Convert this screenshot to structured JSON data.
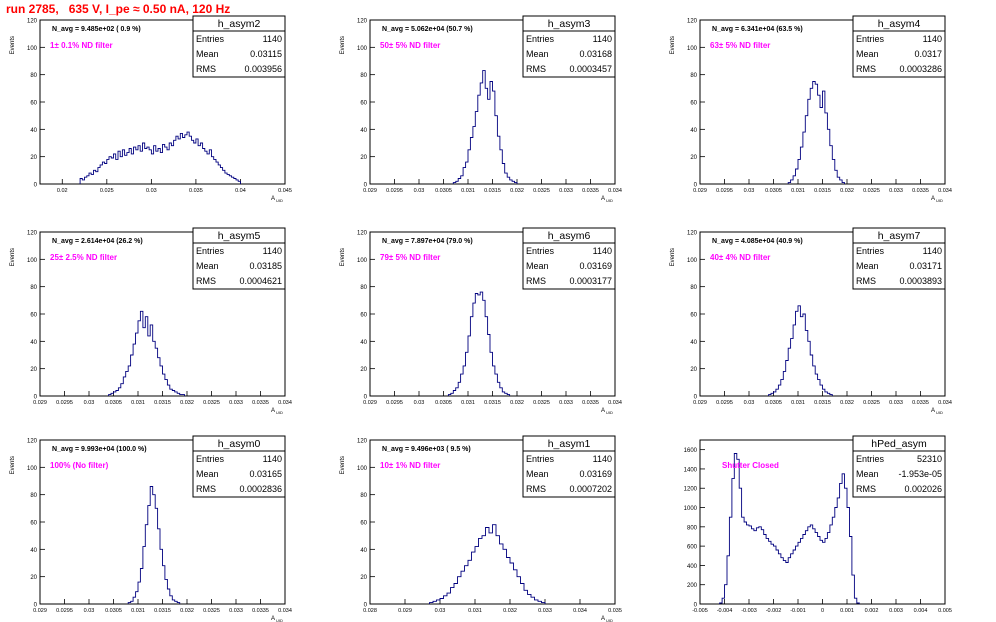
{
  "run_title": "run 2785,   635 V, I_pe ≈ 0.50 nA, 120 Hz",
  "chart_data": [
    {
      "type": "bar",
      "name": "h_asym2",
      "ylabel": "Events",
      "xlabel": "A_UID",
      "navg": "N_avg = 9.485e+02 ( 0.9 %)",
      "filter": "1± 0.1% ND filter",
      "stats": {
        "entries": "1140",
        "mean": "0.03115",
        "rms": "0.003956"
      },
      "xlim": [
        0.0175,
        0.045
      ],
      "ylim": [
        0,
        120
      ],
      "xticks": [
        0.02,
        0.025,
        0.03,
        0.035,
        0.04,
        0.045
      ],
      "xtick_labels": [
        "0.02",
        "0.025",
        "0.03",
        "0.035",
        "0.04",
        "0.045"
      ],
      "yticks": [
        0,
        20,
        40,
        60,
        80,
        100,
        120
      ],
      "bin_start": 0.022,
      "bin_width": 0.00025,
      "values": [
        4,
        3,
        5,
        6,
        8,
        7,
        10,
        9,
        12,
        14,
        16,
        15,
        18,
        20,
        19,
        22,
        18,
        24,
        20,
        25,
        21,
        23,
        26,
        22,
        27,
        25,
        28,
        24,
        30,
        26,
        27,
        25,
        22,
        28,
        24,
        26,
        23,
        29,
        27,
        25,
        30,
        28,
        32,
        35,
        33,
        37,
        34,
        36,
        38,
        35,
        32,
        30,
        33,
        28,
        30,
        26,
        24,
        22,
        25,
        20,
        18,
        16,
        14,
        12,
        10,
        8,
        7,
        6,
        5,
        4,
        3,
        2
      ]
    },
    {
      "type": "bar",
      "name": "h_asym3",
      "ylabel": "Events",
      "xlabel": "A_UID",
      "navg": "N_avg = 5.062e+04 (50.7 %)",
      "filter": "50± 5% ND filter",
      "stats": {
        "entries": "1140",
        "mean": "0.03168",
        "rms": "0.0003457"
      },
      "xlim": [
        0.029,
        0.034
      ],
      "ylim": [
        0,
        120
      ],
      "xticks": [
        0.029,
        0.0295,
        0.03,
        0.0305,
        0.031,
        0.0315,
        0.032,
        0.0325,
        0.033,
        0.0335,
        0.034
      ],
      "xtick_labels": [
        "0.029",
        "0.0295",
        "0.03",
        "0.0305",
        "0.031",
        "0.0315",
        "0.032",
        "0.0325",
        "0.033",
        "0.0335",
        "0.034"
      ],
      "yticks": [
        0,
        20,
        40,
        60,
        80,
        100,
        120
      ],
      "bin_start": 0.0307,
      "bin_width": 5e-05,
      "values": [
        1,
        2,
        4,
        6,
        12,
        16,
        25,
        34,
        42,
        53,
        65,
        74,
        83,
        70,
        62,
        75,
        68,
        50,
        35,
        25,
        15,
        8,
        5,
        3,
        2,
        1
      ]
    },
    {
      "type": "bar",
      "name": "h_asym4",
      "ylabel": "Events",
      "xlabel": "A_UID",
      "navg": "N_avg = 6.341e+04 (63.5 %)",
      "filter": "63± 5% ND filter",
      "stats": {
        "entries": "1140",
        "mean": "0.0317",
        "rms": "0.0003286"
      },
      "xlim": [
        0.029,
        0.034
      ],
      "ylim": [
        0,
        120
      ],
      "xticks": [
        0.029,
        0.0295,
        0.03,
        0.0305,
        0.031,
        0.0315,
        0.032,
        0.0325,
        0.033,
        0.0335,
        0.034
      ],
      "xtick_labels": [
        "0.029",
        "0.0295",
        "0.03",
        "0.0305",
        "0.031",
        "0.0315",
        "0.032",
        "0.0325",
        "0.033",
        "0.0335",
        "0.034"
      ],
      "yticks": [
        0,
        20,
        40,
        60,
        80,
        100,
        120
      ],
      "bin_start": 0.0308,
      "bin_width": 5e-05,
      "values": [
        1,
        3,
        6,
        11,
        18,
        27,
        38,
        50,
        62,
        70,
        75,
        73,
        65,
        56,
        68,
        52,
        40,
        28,
        18,
        10,
        5,
        3,
        1
      ]
    },
    {
      "type": "bar",
      "name": "h_asym5",
      "ylabel": "Events",
      "xlabel": "A_UID",
      "navg": "N_avg = 2.614e+04 (26.2 %)",
      "filter": "25± 2.5% ND filter",
      "stats": {
        "entries": "1140",
        "mean": "0.03185",
        "rms": "0.0004621"
      },
      "xlim": [
        0.029,
        0.034
      ],
      "ylim": [
        0,
        120
      ],
      "xticks": [
        0.029,
        0.0295,
        0.03,
        0.0305,
        0.031,
        0.0315,
        0.032,
        0.0325,
        0.033,
        0.0335,
        0.034
      ],
      "xtick_labels": [
        "0.029",
        "0.0295",
        "0.03",
        "0.0305",
        "0.031",
        "0.0315",
        "0.032",
        "0.0325",
        "0.033",
        "0.0335",
        "0.034"
      ],
      "yticks": [
        0,
        20,
        40,
        60,
        80,
        100,
        120
      ],
      "bin_start": 0.0304,
      "bin_width": 5e-05,
      "values": [
        1,
        2,
        3,
        4,
        6,
        9,
        14,
        18,
        22,
        30,
        38,
        46,
        55,
        62,
        50,
        58,
        44,
        52,
        40,
        35,
        28,
        22,
        16,
        12,
        8,
        5,
        4,
        3,
        2,
        1,
        1
      ]
    },
    {
      "type": "bar",
      "name": "h_asym6",
      "ylabel": "Events",
      "xlabel": "A_UID",
      "navg": "N_avg = 7.897e+04 (79.0 %)",
      "filter": "79± 5% ND filter",
      "stats": {
        "entries": "1140",
        "mean": "0.03169",
        "rms": "0.0003177"
      },
      "xlim": [
        0.029,
        0.034
      ],
      "ylim": [
        0,
        120
      ],
      "xticks": [
        0.029,
        0.0295,
        0.03,
        0.0305,
        0.031,
        0.0315,
        0.032,
        0.0325,
        0.033,
        0.0335,
        0.034
      ],
      "xtick_labels": [
        "0.029",
        "0.0295",
        "0.03",
        "0.0305",
        "0.031",
        "0.0315",
        "0.032",
        "0.0325",
        "0.033",
        "0.0335",
        "0.034"
      ],
      "yticks": [
        0,
        20,
        40,
        60,
        80,
        100,
        120
      ],
      "bin_start": 0.0306,
      "bin_width": 5e-05,
      "values": [
        1,
        2,
        4,
        6,
        10,
        16,
        22,
        32,
        44,
        58,
        68,
        75,
        74,
        76,
        70,
        58,
        45,
        32,
        22,
        16,
        10,
        6,
        3,
        2,
        1
      ]
    },
    {
      "type": "bar",
      "name": "h_asym7",
      "ylabel": "Events",
      "xlabel": "A_UID",
      "navg": "N_avg = 4.085e+04 (40.9 %)",
      "filter": "40± 4% ND filter",
      "stats": {
        "entries": "1140",
        "mean": "0.03171",
        "rms": "0.0003893"
      },
      "xlim": [
        0.029,
        0.034
      ],
      "ylim": [
        0,
        120
      ],
      "xticks": [
        0.029,
        0.0295,
        0.03,
        0.0305,
        0.031,
        0.0315,
        0.032,
        0.0325,
        0.033,
        0.0335,
        0.034
      ],
      "xtick_labels": [
        "0.029",
        "0.0295",
        "0.03",
        "0.0305",
        "0.031",
        "0.0315",
        "0.032",
        "0.0325",
        "0.033",
        "0.0335",
        "0.034"
      ],
      "yticks": [
        0,
        20,
        40,
        60,
        80,
        100,
        120
      ],
      "bin_start": 0.0304,
      "bin_width": 5e-05,
      "values": [
        1,
        2,
        3,
        5,
        8,
        12,
        18,
        26,
        35,
        42,
        52,
        62,
        66,
        58,
        60,
        48,
        40,
        30,
        22,
        16,
        12,
        8,
        5,
        3,
        2,
        1
      ]
    },
    {
      "type": "bar",
      "name": "h_asym0",
      "ylabel": "Events",
      "xlabel": "A_UID",
      "navg": "N_avg = 9.993e+04 (100.0 %)",
      "filter": "100% (No filter)",
      "stats": {
        "entries": "1140",
        "mean": "0.03165",
        "rms": "0.0002836"
      },
      "xlim": [
        0.029,
        0.034
      ],
      "ylim": [
        0,
        120
      ],
      "xticks": [
        0.029,
        0.0295,
        0.03,
        0.0305,
        0.031,
        0.0315,
        0.032,
        0.0325,
        0.033,
        0.0335,
        0.034
      ],
      "xtick_labels": [
        "0.029",
        "0.0295",
        "0.03",
        "0.0305",
        "0.031",
        "0.0315",
        "0.032",
        "0.0325",
        "0.033",
        "0.0335",
        "0.034"
      ],
      "yticks": [
        0,
        20,
        40,
        60,
        80,
        100,
        120
      ],
      "bin_start": 0.0308,
      "bin_width": 5e-05,
      "values": [
        1,
        2,
        5,
        9,
        16,
        26,
        42,
        58,
        72,
        86,
        80,
        70,
        55,
        40,
        28,
        18,
        11,
        6,
        3,
        2,
        1
      ]
    },
    {
      "type": "bar",
      "name": "h_asym1",
      "ylabel": "Events",
      "xlabel": "A_UID",
      "navg": "N_avg = 9.496e+03 ( 9.5 %)",
      "filter": "10± 1% ND filter",
      "stats": {
        "entries": "1140",
        "mean": "0.03169",
        "rms": "0.0007202"
      },
      "xlim": [
        0.028,
        0.035
      ],
      "ylim": [
        0,
        120
      ],
      "xticks": [
        0.028,
        0.029,
        0.03,
        0.031,
        0.032,
        0.033,
        0.034,
        0.035
      ],
      "xtick_labels": [
        "0.028",
        "0.029",
        "0.03",
        "0.031",
        "0.032",
        "0.033",
        "0.034",
        "0.035"
      ],
      "yticks": [
        0,
        20,
        40,
        60,
        80,
        100,
        120
      ],
      "bin_start": 0.0297,
      "bin_width": 0.0001,
      "values": [
        1,
        2,
        3,
        4,
        6,
        8,
        12,
        15,
        20,
        24,
        28,
        32,
        38,
        42,
        48,
        50,
        56,
        52,
        58,
        50,
        44,
        40,
        34,
        30,
        25,
        20,
        15,
        10,
        7,
        5,
        3,
        2,
        1
      ]
    },
    {
      "type": "bar",
      "name": "hPed_asym",
      "ylabel": "",
      "xlabel": "",
      "navg": "",
      "filter": "Shutter Closed",
      "stats": {
        "entries": "52310",
        "mean": "-1.953e-05",
        "rms": "0.002026"
      },
      "xlim": [
        -0.005,
        0.005
      ],
      "ylim": [
        0,
        1700
      ],
      "xticks": [
        -0.005,
        -0.004,
        -0.003,
        -0.002,
        -0.001,
        0,
        0.001,
        0.002,
        0.003,
        0.004,
        0.005
      ],
      "xtick_labels": [
        "-0.005",
        "-0.004",
        "-0.003",
        "-0.002",
        "-0.001",
        "0",
        "0.001",
        "0.002",
        "0.003",
        "0.004",
        "0.005"
      ],
      "yticks": [
        0,
        200,
        400,
        600,
        800,
        1000,
        1200,
        1400,
        1600
      ],
      "bin_start": -0.0042,
      "bin_width": 0.0001,
      "values": [
        10,
        60,
        200,
        500,
        900,
        1300,
        1560,
        1500,
        1200,
        900,
        850,
        820,
        810,
        780,
        760,
        790,
        800,
        770,
        720,
        680,
        650,
        620,
        600,
        560,
        520,
        480,
        450,
        430,
        480,
        520,
        560,
        600,
        640,
        680,
        720,
        760,
        800,
        820,
        780,
        740,
        700,
        660,
        640,
        680,
        740,
        820,
        900,
        1000,
        1100,
        1250,
        1350,
        1200,
        1000,
        700,
        300,
        60,
        10
      ]
    }
  ]
}
